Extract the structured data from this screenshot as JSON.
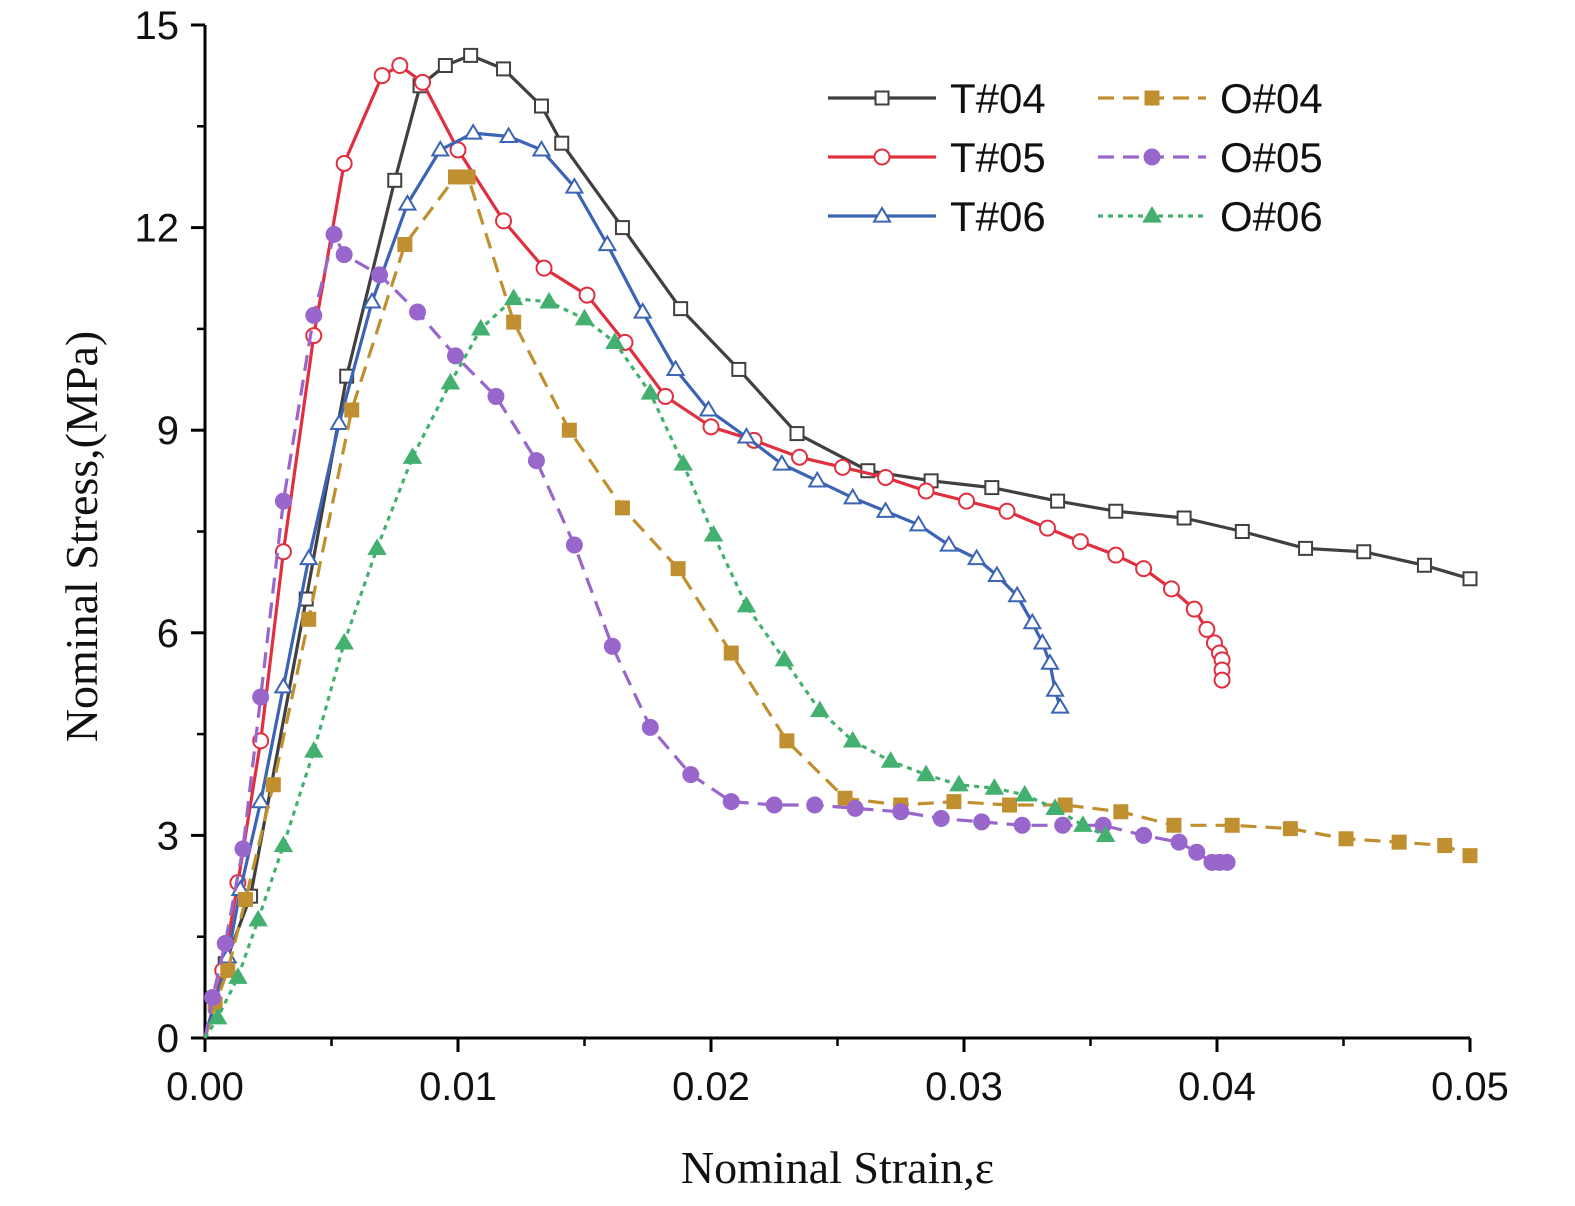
{
  "chart_data": {
    "type": "line",
    "xlabel": "Nominal Strain,ε",
    "ylabel": "Nominal Stress,(MPa)",
    "xlim": [
      0,
      0.05
    ],
    "ylim": [
      0,
      15
    ],
    "x_ticks": [
      "0.00",
      "0.01",
      "0.02",
      "0.03",
      "0.04",
      "0.05"
    ],
    "y_ticks": [
      "0",
      "3",
      "6",
      "9",
      "12",
      "15"
    ],
    "grid": false,
    "legend_position": "top-right",
    "series": [
      {
        "name": "T#04",
        "color": "#404040",
        "dash": "solid",
        "marker": "square-open",
        "points": [
          [
            0,
            0
          ],
          [
            0.0008,
            1.1
          ],
          [
            0.0018,
            2.1
          ],
          [
            0.004,
            6.5
          ],
          [
            0.0056,
            9.8
          ],
          [
            0.0075,
            12.7
          ],
          [
            0.0085,
            14.1
          ],
          [
            0.0095,
            14.4
          ],
          [
            0.0105,
            14.55
          ],
          [
            0.0118,
            14.35
          ],
          [
            0.0133,
            13.8
          ],
          [
            0.0141,
            13.25
          ],
          [
            0.0165,
            12.0
          ],
          [
            0.0188,
            10.8
          ],
          [
            0.0211,
            9.9
          ],
          [
            0.0234,
            8.95
          ],
          [
            0.0262,
            8.4
          ],
          [
            0.0287,
            8.25
          ],
          [
            0.0311,
            8.15
          ],
          [
            0.0337,
            7.95
          ],
          [
            0.036,
            7.8
          ],
          [
            0.0387,
            7.7
          ],
          [
            0.041,
            7.5
          ],
          [
            0.0435,
            7.25
          ],
          [
            0.0458,
            7.2
          ],
          [
            0.0482,
            7.0
          ],
          [
            0.05,
            6.8
          ]
        ]
      },
      {
        "name": "T#05",
        "color": "#e03040",
        "dash": "solid",
        "marker": "circle-open",
        "points": [
          [
            0,
            0
          ],
          [
            0.0007,
            1.0
          ],
          [
            0.0013,
            2.3
          ],
          [
            0.0022,
            4.4
          ],
          [
            0.0031,
            7.2
          ],
          [
            0.0043,
            10.4
          ],
          [
            0.0055,
            12.95
          ],
          [
            0.007,
            14.25
          ],
          [
            0.0077,
            14.4
          ],
          [
            0.0086,
            14.15
          ],
          [
            0.01,
            13.15
          ],
          [
            0.0118,
            12.1
          ],
          [
            0.0134,
            11.4
          ],
          [
            0.0151,
            11.0
          ],
          [
            0.0166,
            10.3
          ],
          [
            0.0182,
            9.5
          ],
          [
            0.02,
            9.05
          ],
          [
            0.0217,
            8.85
          ],
          [
            0.0235,
            8.6
          ],
          [
            0.0252,
            8.45
          ],
          [
            0.0269,
            8.3
          ],
          [
            0.0285,
            8.1
          ],
          [
            0.0301,
            7.95
          ],
          [
            0.0317,
            7.8
          ],
          [
            0.0333,
            7.55
          ],
          [
            0.0346,
            7.35
          ],
          [
            0.036,
            7.15
          ],
          [
            0.0371,
            6.95
          ],
          [
            0.0382,
            6.65
          ],
          [
            0.0391,
            6.35
          ],
          [
            0.0396,
            6.05
          ],
          [
            0.0399,
            5.85
          ],
          [
            0.0401,
            5.7
          ],
          [
            0.0402,
            5.6
          ],
          [
            0.0402,
            5.45
          ],
          [
            0.0402,
            5.3
          ]
        ]
      },
      {
        "name": "T#06",
        "color": "#3c64b4",
        "dash": "solid",
        "marker": "triangle-open",
        "points": [
          [
            0,
            0
          ],
          [
            0.0009,
            1.2
          ],
          [
            0.0014,
            2.2
          ],
          [
            0.0022,
            3.5
          ],
          [
            0.0031,
            5.2
          ],
          [
            0.0041,
            7.1
          ],
          [
            0.0053,
            9.1
          ],
          [
            0.0066,
            10.9
          ],
          [
            0.008,
            12.35
          ],
          [
            0.0093,
            13.15
          ],
          [
            0.0106,
            13.4
          ],
          [
            0.012,
            13.35
          ],
          [
            0.0133,
            13.15
          ],
          [
            0.0146,
            12.6
          ],
          [
            0.0159,
            11.75
          ],
          [
            0.0173,
            10.75
          ],
          [
            0.0186,
            9.9
          ],
          [
            0.0199,
            9.3
          ],
          [
            0.0214,
            8.9
          ],
          [
            0.0228,
            8.5
          ],
          [
            0.0242,
            8.25
          ],
          [
            0.0256,
            8.0
          ],
          [
            0.0269,
            7.8
          ],
          [
            0.0282,
            7.6
          ],
          [
            0.0294,
            7.3
          ],
          [
            0.0305,
            7.1
          ],
          [
            0.0313,
            6.85
          ],
          [
            0.0321,
            6.55
          ],
          [
            0.0327,
            6.15
          ],
          [
            0.0331,
            5.85
          ],
          [
            0.0334,
            5.55
          ],
          [
            0.0336,
            5.15
          ],
          [
            0.0338,
            4.9
          ]
        ]
      },
      {
        "name": "O#04",
        "color": "#c09030",
        "dash": "dashed",
        "marker": "square-filled",
        "points": [
          [
            0,
            0
          ],
          [
            0.0004,
            0.5
          ],
          [
            0.0009,
            1.0
          ],
          [
            0.0016,
            2.05
          ],
          [
            0.0027,
            3.75
          ],
          [
            0.0041,
            6.2
          ],
          [
            0.0058,
            9.3
          ],
          [
            0.0079,
            11.75
          ],
          [
            0.0099,
            12.75
          ],
          [
            0.0104,
            12.75
          ],
          [
            0.0122,
            10.6
          ],
          [
            0.0144,
            9.0
          ],
          [
            0.0165,
            7.85
          ],
          [
            0.0187,
            6.95
          ],
          [
            0.0208,
            5.7
          ],
          [
            0.023,
            4.4
          ],
          [
            0.0253,
            3.55
          ],
          [
            0.0275,
            3.45
          ],
          [
            0.0296,
            3.5
          ],
          [
            0.0318,
            3.45
          ],
          [
            0.034,
            3.45
          ],
          [
            0.0362,
            3.35
          ],
          [
            0.0383,
            3.15
          ],
          [
            0.0406,
            3.15
          ],
          [
            0.0429,
            3.1
          ],
          [
            0.0451,
            2.95
          ],
          [
            0.0472,
            2.9
          ],
          [
            0.049,
            2.85
          ],
          [
            0.05,
            2.7
          ]
        ]
      },
      {
        "name": "O#05",
        "color": "#9966cc",
        "dash": "dashed",
        "marker": "circle-filled",
        "points": [
          [
            0,
            0
          ],
          [
            0.0003,
            0.6
          ],
          [
            0.0008,
            1.4
          ],
          [
            0.0015,
            2.8
          ],
          [
            0.0022,
            5.05
          ],
          [
            0.0031,
            7.95
          ],
          [
            0.0043,
            10.7
          ],
          [
            0.0051,
            11.9
          ],
          [
            0.0055,
            11.6
          ],
          [
            0.0069,
            11.3
          ],
          [
            0.0084,
            10.75
          ],
          [
            0.0099,
            10.1
          ],
          [
            0.0115,
            9.5
          ],
          [
            0.0131,
            8.55
          ],
          [
            0.0146,
            7.3
          ],
          [
            0.0161,
            5.8
          ],
          [
            0.0176,
            4.6
          ],
          [
            0.0192,
            3.9
          ],
          [
            0.0208,
            3.5
          ],
          [
            0.0225,
            3.45
          ],
          [
            0.0241,
            3.45
          ],
          [
            0.0257,
            3.4
          ],
          [
            0.0275,
            3.35
          ],
          [
            0.0291,
            3.25
          ],
          [
            0.0307,
            3.2
          ],
          [
            0.0323,
            3.15
          ],
          [
            0.0339,
            3.15
          ],
          [
            0.0355,
            3.15
          ],
          [
            0.0371,
            3.0
          ],
          [
            0.0385,
            2.9
          ],
          [
            0.0392,
            2.75
          ],
          [
            0.0398,
            2.6
          ],
          [
            0.0401,
            2.6
          ],
          [
            0.0404,
            2.6
          ]
        ]
      },
      {
        "name": "O#06",
        "color": "#44b070",
        "dash": "dotted",
        "marker": "triangle-filled",
        "points": [
          [
            0,
            0
          ],
          [
            0.0005,
            0.3
          ],
          [
            0.0013,
            0.9
          ],
          [
            0.0021,
            1.75
          ],
          [
            0.0031,
            2.85
          ],
          [
            0.0043,
            4.25
          ],
          [
            0.0055,
            5.85
          ],
          [
            0.0068,
            7.25
          ],
          [
            0.0082,
            8.6
          ],
          [
            0.0097,
            9.7
          ],
          [
            0.0109,
            10.5
          ],
          [
            0.0122,
            10.95
          ],
          [
            0.0136,
            10.9
          ],
          [
            0.015,
            10.65
          ],
          [
            0.0162,
            10.3
          ],
          [
            0.0176,
            9.55
          ],
          [
            0.0189,
            8.5
          ],
          [
            0.0201,
            7.45
          ],
          [
            0.0214,
            6.4
          ],
          [
            0.0229,
            5.6
          ],
          [
            0.0243,
            4.85
          ],
          [
            0.0256,
            4.4
          ],
          [
            0.0271,
            4.1
          ],
          [
            0.0285,
            3.9
          ],
          [
            0.0298,
            3.75
          ],
          [
            0.0312,
            3.7
          ],
          [
            0.0324,
            3.6
          ],
          [
            0.0336,
            3.4
          ],
          [
            0.0347,
            3.15
          ],
          [
            0.0356,
            3.0
          ]
        ]
      }
    ]
  }
}
